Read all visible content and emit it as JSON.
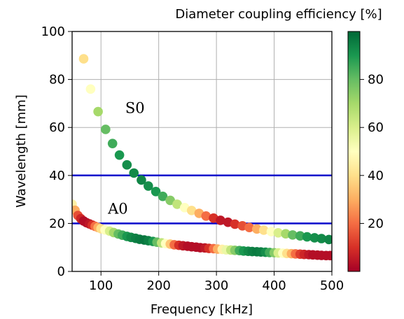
{
  "chart_data": {
    "type": "scatter",
    "xlabel": "Frequency [kHz]",
    "ylabel": "Wavelength [mm]",
    "xlim": [
      50,
      500
    ],
    "ylim": [
      0,
      100
    ],
    "xticks": [
      100,
      200,
      300,
      400,
      500
    ],
    "yticks": [
      0,
      20,
      40,
      60,
      80,
      100
    ],
    "grid": true,
    "colorbar": {
      "label": "Diameter coupling efficiency [%]",
      "colormap": "RdYlGn",
      "range": [
        0,
        100
      ],
      "ticks": [
        20,
        40,
        60,
        80
      ]
    },
    "annotations": [
      {
        "text": "S0",
        "x": 142,
        "y": 66
      },
      {
        "text": "A0",
        "x": 112,
        "y": 24
      }
    ],
    "horizontal_lines": [
      {
        "y": 40,
        "color": "#0000cc"
      },
      {
        "y": 20,
        "color": "#0000cc"
      }
    ],
    "series": [
      {
        "points": [
          [
            70,
            88.6,
            40
          ],
          [
            82,
            76,
            50
          ],
          [
            95,
            66.6,
            70
          ],
          [
            108,
            59.2,
            80
          ],
          [
            120,
            53.3,
            85
          ],
          [
            132,
            48.5,
            90
          ],
          [
            145,
            44.4,
            92
          ],
          [
            157,
            41,
            93
          ],
          [
            170,
            38.1,
            94
          ],
          [
            182,
            35.6,
            92
          ],
          [
            195,
            33.3,
            90
          ],
          [
            207,
            31.3,
            85
          ],
          [
            220,
            29.6,
            75
          ],
          [
            232,
            28,
            65
          ],
          [
            245,
            26.6,
            50
          ],
          [
            257,
            25.4,
            40
          ],
          [
            270,
            24.2,
            30
          ],
          [
            282,
            23.1,
            20
          ],
          [
            295,
            22.2,
            10
          ],
          [
            307,
            21.3,
            5
          ],
          [
            320,
            20.5,
            5
          ],
          [
            332,
            19.7,
            10
          ],
          [
            345,
            19,
            15
          ],
          [
            357,
            18.3,
            20
          ],
          [
            370,
            17.7,
            30
          ],
          [
            382,
            17.2,
            40
          ],
          [
            395,
            16.6,
            50
          ],
          [
            407,
            16.1,
            60
          ],
          [
            420,
            15.7,
            70
          ],
          [
            432,
            15.2,
            80
          ],
          [
            445,
            14.8,
            85
          ],
          [
            457,
            14.4,
            90
          ],
          [
            470,
            14,
            92
          ],
          [
            482,
            13.7,
            93
          ],
          [
            495,
            13.3,
            94
          ]
        ]
      },
      {
        "points": [
          [
            50,
            28,
            45
          ],
          [
            55,
            25.5,
            30
          ],
          [
            60,
            23.3,
            15
          ],
          [
            65,
            22,
            8
          ],
          [
            70,
            21,
            3
          ],
          [
            75,
            20.3,
            3
          ],
          [
            80,
            19.8,
            5
          ],
          [
            85,
            19.3,
            10
          ],
          [
            90,
            18.8,
            20
          ],
          [
            95,
            18.3,
            30
          ],
          [
            100,
            17.8,
            40
          ],
          [
            107,
            17.3,
            50
          ],
          [
            115,
            16.8,
            60
          ],
          [
            122,
            16.2,
            70
          ],
          [
            130,
            15.6,
            80
          ],
          [
            137,
            15.1,
            85
          ],
          [
            145,
            14.6,
            90
          ],
          [
            152,
            14.2,
            93
          ],
          [
            160,
            13.8,
            95
          ],
          [
            167,
            13.4,
            96
          ],
          [
            175,
            13.1,
            97
          ],
          [
            182,
            12.8,
            95
          ],
          [
            190,
            12.5,
            90
          ],
          [
            197,
            12.2,
            80
          ],
          [
            205,
            11.9,
            65
          ],
          [
            212,
            11.6,
            50
          ],
          [
            220,
            11.4,
            35
          ],
          [
            227,
            11.1,
            20
          ],
          [
            235,
            10.9,
            10
          ],
          [
            242,
            10.7,
            5
          ],
          [
            250,
            10.5,
            3
          ],
          [
            257,
            10.3,
            3
          ],
          [
            265,
            10.1,
            3
          ],
          [
            272,
            9.9,
            3
          ],
          [
            280,
            9.8,
            5
          ],
          [
            287,
            9.6,
            10
          ],
          [
            295,
            9.5,
            20
          ],
          [
            302,
            9.3,
            30
          ],
          [
            310,
            9.2,
            45
          ],
          [
            317,
            9,
            55
          ],
          [
            325,
            8.9,
            65
          ],
          [
            332,
            8.8,
            75
          ],
          [
            340,
            8.7,
            85
          ],
          [
            347,
            8.5,
            90
          ],
          [
            355,
            8.4,
            93
          ],
          [
            362,
            8.3,
            95
          ],
          [
            370,
            8.2,
            96
          ],
          [
            377,
            8.1,
            95
          ],
          [
            385,
            8,
            92
          ],
          [
            392,
            7.9,
            85
          ],
          [
            400,
            7.8,
            75
          ],
          [
            407,
            7.7,
            60
          ],
          [
            415,
            7.6,
            50
          ],
          [
            422,
            7.5,
            40
          ],
          [
            430,
            7.4,
            30
          ],
          [
            437,
            7.3,
            20
          ],
          [
            445,
            7.2,
            12
          ],
          [
            452,
            7.1,
            8
          ],
          [
            460,
            7,
            5
          ],
          [
            467,
            6.9,
            3
          ],
          [
            475,
            6.8,
            3
          ],
          [
            482,
            6.7,
            3
          ],
          [
            490,
            6.6,
            3
          ],
          [
            497,
            6.6,
            3
          ]
        ]
      }
    ]
  }
}
